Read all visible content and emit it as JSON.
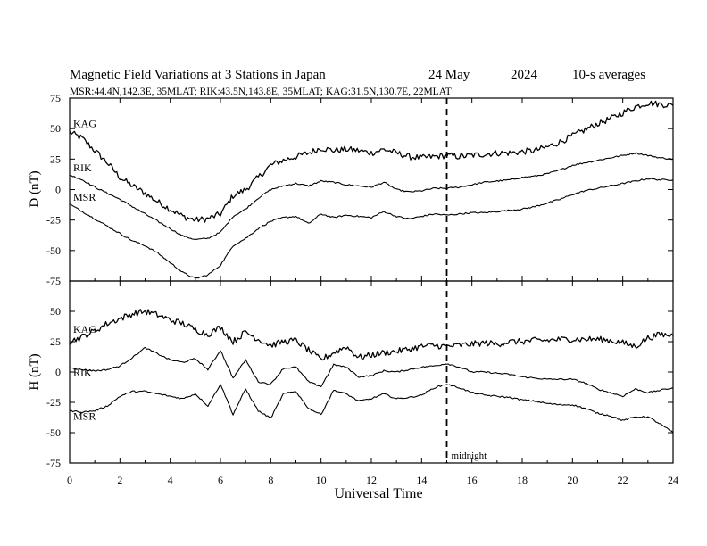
{
  "chart_data": {
    "type": "line",
    "title": "Magnetic Field Variations at 3 Stations in Japan",
    "date": "24 May",
    "year": "2024",
    "averaging": "10-s averages",
    "subtitle": "MSR:44.4N,142.3E, 35MLAT;  RIK:43.5N,143.8E, 35MLAT;  KAG:31.5N,130.7E, 22MLAT",
    "xlabel": "Universal Time",
    "xlim": [
      0,
      24
    ],
    "x_ticks": [
      0,
      2,
      4,
      6,
      8,
      10,
      12,
      14,
      16,
      18,
      20,
      22,
      24
    ],
    "midnight_marker": {
      "x": 15,
      "label": "midnight"
    },
    "panels": [
      {
        "id": "D",
        "ylabel": "D (nT)",
        "ylim": [
          -75,
          75
        ],
        "y_ticks": [
          75,
          50,
          25,
          0,
          -25,
          -50,
          -75
        ],
        "series": [
          {
            "name": "KAG",
            "noise": 2.6,
            "x": [
              0,
              0.5,
              1,
              1.5,
              2,
              2.5,
              3,
              3.5,
              4,
              4.5,
              5,
              5.5,
              6,
              6.5,
              7,
              7.5,
              8,
              8.5,
              9,
              9.5,
              10,
              10.5,
              11,
              11.5,
              12,
              12.5,
              13,
              13.5,
              14,
              14.5,
              15,
              15.5,
              16,
              16.5,
              17,
              17.5,
              18,
              18.5,
              19,
              19.5,
              20,
              20.5,
              21,
              21.5,
              22,
              22.5,
              23,
              23.5,
              24
            ],
            "values": [
              47,
              42,
              32,
              22,
              10,
              3,
              -3,
              -10,
              -16,
              -22,
              -25,
              -24,
              -20,
              -5,
              0,
              10,
              20,
              24,
              27,
              30,
              34,
              32,
              33,
              32,
              30,
              33,
              30,
              27,
              26,
              27,
              28,
              27,
              28,
              29,
              30,
              30,
              31,
              32,
              35,
              39,
              44,
              49,
              54,
              58,
              63,
              68,
              71,
              70,
              69
            ]
          },
          {
            "name": "RIK",
            "noise": 0.6,
            "x": [
              0,
              0.5,
              1,
              1.5,
              2,
              2.5,
              3,
              3.5,
              4,
              4.5,
              5,
              5.5,
              6,
              6.5,
              7,
              7.5,
              8,
              8.5,
              9,
              9.5,
              10,
              10.5,
              11,
              11.5,
              12,
              12.5,
              13,
              13.5,
              14,
              14.5,
              15,
              15.5,
              16,
              16.5,
              17,
              17.5,
              18,
              18.5,
              19,
              19.5,
              20,
              20.5,
              21,
              21.5,
              22,
              22.5,
              23,
              23.5,
              24
            ],
            "values": [
              12,
              8,
              2,
              -3,
              -8,
              -14,
              -20,
              -26,
              -32,
              -38,
              -41,
              -40,
              -35,
              -22,
              -16,
              -7,
              0,
              3,
              5,
              3,
              7,
              6,
              4,
              3,
              2,
              6,
              0,
              -2,
              -1,
              1,
              1,
              2,
              4,
              6,
              7,
              8,
              10,
              11,
              13,
              16,
              20,
              22,
              24,
              26,
              28,
              30,
              28,
              26,
              25
            ]
          },
          {
            "name": "MSR",
            "noise": 0.6,
            "x": [
              0,
              0.5,
              1,
              1.5,
              2,
              2.5,
              3,
              3.5,
              4,
              4.5,
              5,
              5.5,
              6,
              6.5,
              7,
              7.5,
              8,
              8.5,
              9,
              9.5,
              10,
              10.5,
              11,
              11.5,
              12,
              12.5,
              13,
              13.5,
              14,
              14.5,
              15,
              15.5,
              16,
              16.5,
              17,
              17.5,
              18,
              18.5,
              19,
              19.5,
              20,
              20.5,
              21,
              21.5,
              22,
              22.5,
              23,
              23.5,
              24
            ],
            "values": [
              -12,
              -18,
              -24,
              -30,
              -36,
              -42,
              -46,
              -52,
              -60,
              -68,
              -73,
              -70,
              -62,
              -46,
              -40,
              -32,
              -26,
              -23,
              -22,
              -28,
              -20,
              -23,
              -21,
              -22,
              -23,
              -18,
              -22,
              -24,
              -22,
              -20,
              -21,
              -20,
              -19,
              -19,
              -18,
              -17,
              -16,
              -14,
              -11,
              -8,
              -4,
              -1,
              1,
              3,
              5,
              7,
              9,
              8,
              8
            ]
          }
        ]
      },
      {
        "id": "H",
        "ylabel": "H (nT)",
        "ylim": [
          -75,
          75
        ],
        "y_ticks": [
          50,
          25,
          0,
          -25,
          -50,
          -75
        ],
        "series": [
          {
            "name": "KAG",
            "noise": 2.6,
            "x": [
              0,
              0.5,
              1,
              1.5,
              2,
              2.5,
              3,
              3.5,
              4,
              4.5,
              5,
              5.5,
              6,
              6.5,
              7,
              7.5,
              8,
              8.5,
              9,
              9.5,
              10,
              10.5,
              11,
              11.5,
              12,
              12.5,
              13,
              13.5,
              14,
              14.5,
              15,
              15.5,
              16,
              16.5,
              17,
              17.5,
              18,
              18.5,
              19,
              19.5,
              20,
              20.5,
              21,
              21.5,
              22,
              22.5,
              23,
              23.5,
              24
            ],
            "values": [
              25,
              29,
              34,
              40,
              44,
              48,
              50,
              47,
              43,
              40,
              35,
              31,
              37,
              25,
              33,
              27,
              22,
              25,
              26,
              18,
              10,
              16,
              21,
              12,
              14,
              16,
              17,
              19,
              21,
              22,
              21,
              22,
              23,
              24,
              23,
              25,
              25,
              26,
              26,
              27,
              27,
              27,
              27,
              26,
              24,
              21,
              28,
              31,
              30
            ]
          },
          {
            "name": "RIK",
            "noise": 0.6,
            "x": [
              0,
              0.5,
              1,
              1.5,
              2,
              2.5,
              3,
              3.5,
              4,
              4.5,
              5,
              5.5,
              6,
              6.5,
              7,
              7.5,
              8,
              8.5,
              9,
              9.5,
              10,
              10.5,
              11,
              11.5,
              12,
              12.5,
              13,
              13.5,
              14,
              14.5,
              15,
              15.5,
              16,
              16.5,
              17,
              17.5,
              18,
              18.5,
              19,
              19.5,
              20,
              20.5,
              21,
              21.5,
              22,
              22.5,
              23,
              23.5,
              24
            ],
            "values": [
              4,
              2,
              1,
              2,
              5,
              12,
              20,
              15,
              10,
              8,
              11,
              2,
              18,
              -5,
              10,
              -8,
              -10,
              3,
              4,
              -8,
              -12,
              6,
              4,
              -4,
              -3,
              1,
              0,
              2,
              4,
              5,
              7,
              4,
              0,
              0,
              -1,
              -2,
              -4,
              -5,
              -6,
              -6,
              -6,
              -9,
              -14,
              -17,
              -20,
              -14,
              -17,
              -15,
              -13
            ]
          },
          {
            "name": "MSR",
            "noise": 0.6,
            "x": [
              0,
              0.5,
              1,
              1.5,
              2,
              2.5,
              3,
              3.5,
              4,
              4.5,
              5,
              5.5,
              6,
              6.5,
              7,
              7.5,
              8,
              8.5,
              9,
              9.5,
              10,
              10.5,
              11,
              11.5,
              12,
              12.5,
              13,
              13.5,
              14,
              14.5,
              15,
              15.5,
              16,
              16.5,
              17,
              17.5,
              18,
              18.5,
              19,
              19.5,
              20,
              20.5,
              21,
              21.5,
              22,
              22.5,
              23,
              23.5,
              24
            ],
            "values": [
              -32,
              -33,
              -32,
              -28,
              -20,
              -16,
              -16,
              -18,
              -20,
              -22,
              -18,
              -28,
              -10,
              -35,
              -14,
              -32,
              -38,
              -18,
              -16,
              -30,
              -35,
              -15,
              -18,
              -24,
              -22,
              -18,
              -22,
              -21,
              -19,
              -13,
              -10,
              -13,
              -17,
              -19,
              -20,
              -21,
              -23,
              -24,
              -26,
              -27,
              -27,
              -30,
              -34,
              -36,
              -40,
              -37,
              -37,
              -43,
              -50
            ]
          }
        ]
      }
    ]
  }
}
